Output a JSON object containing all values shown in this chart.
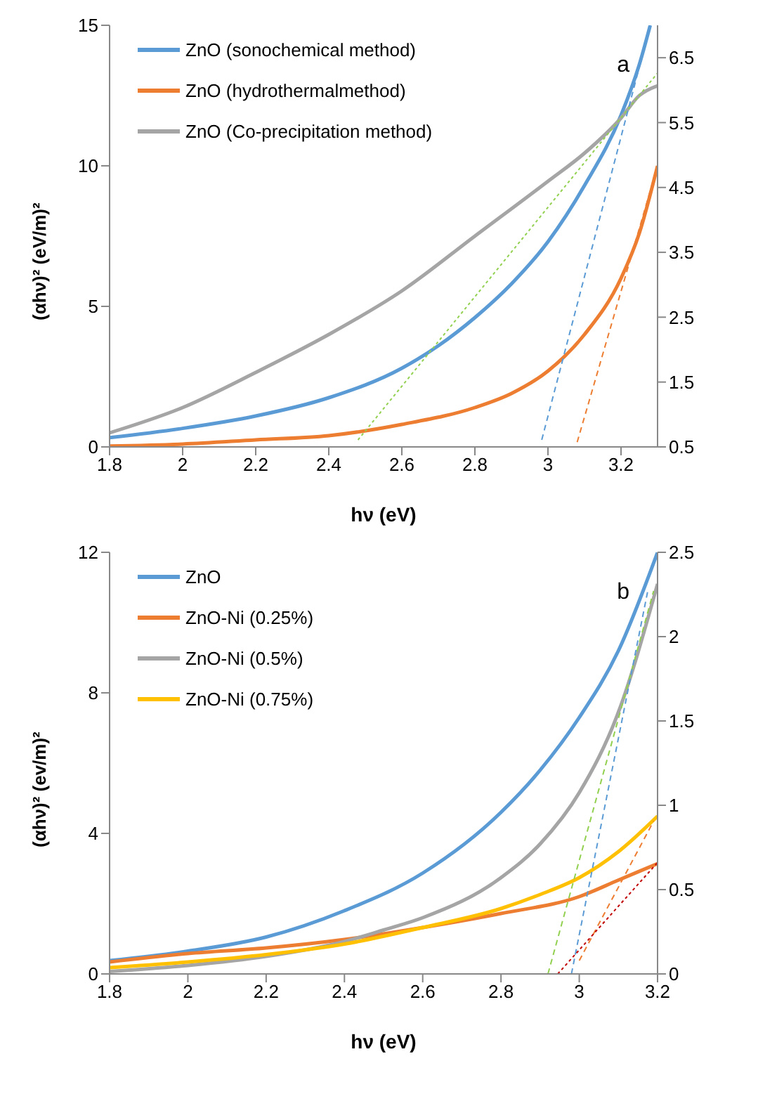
{
  "chart_data": [
    {
      "type": "line",
      "xlabel": "hν (eV)",
      "ylabel": "(αhν)² (eV/m)²",
      "annotations": [
        "a"
      ],
      "xlim": [
        1.8,
        3.3
      ],
      "xticks": [
        1.8,
        2,
        2.2,
        2.4,
        2.6,
        2.8,
        3,
        3.2
      ],
      "ylim": [
        0,
        15
      ],
      "yticks": [
        0,
        5,
        10,
        15
      ],
      "y2lim": [
        0.5,
        7.0
      ],
      "y2ticks": [
        0.5,
        1.5,
        2.5,
        3.5,
        4.5,
        5.5,
        6.5
      ],
      "legend": "top left",
      "marker": "none",
      "line_style": "solid",
      "x": [
        1.8,
        2.0,
        2.2,
        2.4,
        2.6,
        2.8,
        2.9,
        3.0,
        3.1,
        3.2,
        3.25,
        3.3
      ],
      "series": [
        {
          "name": "ZnO (sonochemical method)",
          "color": "#5b9bd5",
          "x": [
            1.8,
            2.0,
            2.2,
            2.4,
            2.6,
            2.7,
            2.8,
            2.9,
            3.0,
            3.1,
            3.2,
            3.25,
            3.28
          ],
          "values": [
            0.33,
            0.66,
            1.1,
            1.75,
            2.8,
            3.6,
            4.6,
            5.8,
            7.3,
            9.3,
            11.8,
            13.6,
            15
          ]
        },
        {
          "name": "ZnO (hydrothermalmethod)",
          "color": "#ed7d31",
          "values": [
            0.03,
            0.1,
            0.25,
            0.4,
            0.8,
            1.4,
            1.9,
            2.7,
            4.0,
            6.0,
            7.6,
            10.0
          ]
        },
        {
          "name": "ZnO (Co-precipitation method)",
          "color": "#a5a5a5",
          "x": [
            1.8,
            2.0,
            2.2,
            2.4,
            2.6,
            2.8,
            3.0,
            3.1,
            3.2,
            3.25,
            3.3
          ],
          "values": [
            0.5,
            1.4,
            2.65,
            4.0,
            5.55,
            7.5,
            9.45,
            10.45,
            11.7,
            12.5,
            12.85
          ]
        },
        {
          "type": "line",
          "color": "#5b9bd5",
          "line_style": "dashed",
          "x": [
            2.983,
            3.28
          ],
          "values": [
            0.25,
            15
          ]
        },
        {
          "type": "line",
          "color": "#ed7d31",
          "line_style": "dashed",
          "x": [
            3.08,
            3.3
          ],
          "values": [
            0.17,
            10
          ]
        },
        {
          "type": "line",
          "color": "#92d050",
          "line_style": "dotted",
          "x": [
            2.48,
            3.3
          ],
          "values": [
            0.25,
            13.3
          ]
        }
      ]
    },
    {
      "type": "line",
      "xlabel": "hν (eV)",
      "ylabel": "(αhν)² (ev/m)²",
      "annotations": [
        "b"
      ],
      "xlim": [
        1.8,
        3.2
      ],
      "xticks": [
        1.8,
        2,
        2.2,
        2.4,
        2.6,
        2.8,
        3,
        3.2
      ],
      "ylim": [
        0,
        12
      ],
      "yticks": [
        0,
        4,
        8,
        12
      ],
      "y2lim": [
        0,
        2.5
      ],
      "y2ticks": [
        0,
        0.5,
        1,
        1.5,
        2,
        2.5
      ],
      "legend": "top left",
      "marker": "none",
      "line_style": "solid",
      "x": [
        1.8,
        2.0,
        2.2,
        2.4,
        2.6,
        2.8,
        2.9,
        3.0,
        3.1,
        3.2
      ],
      "series": [
        {
          "name": "ZnO",
          "color": "#5b9bd5",
          "values": [
            0.38,
            0.65,
            1.05,
            1.8,
            2.87,
            4.6,
            5.8,
            7.3,
            9.2,
            12.0
          ]
        },
        {
          "name": "ZnO-Ni (0.25%)",
          "color": "#ed7d31",
          "x": [
            1.8,
            2.0,
            2.2,
            2.4,
            2.6,
            2.8,
            3.0,
            3.1,
            3.2
          ],
          "values": [
            0.34,
            0.58,
            0.74,
            0.98,
            1.32,
            1.72,
            2.2,
            2.67,
            3.14
          ]
        },
        {
          "name": "ZnO-Ni (0.5%)",
          "color": "#a5a5a5",
          "x": [
            1.8,
            2.0,
            2.2,
            2.4,
            2.5,
            2.6,
            2.8,
            2.9,
            3.0,
            3.1,
            3.2
          ],
          "values": [
            0.07,
            0.24,
            0.5,
            0.92,
            1.25,
            1.6,
            2.74,
            3.7,
            5.16,
            7.45,
            11.1
          ]
        },
        {
          "name": "ZnO-Ni (0.75%)",
          "color": "#ffc000",
          "values": [
            0.18,
            0.34,
            0.55,
            0.85,
            1.32,
            1.86,
            2.26,
            2.74,
            3.48,
            4.49
          ]
        },
        {
          "type": "line",
          "color": "#92d050",
          "line_style": "dashed",
          "x": [
            2.92,
            3.19
          ],
          "values": [
            0,
            10.9
          ]
        },
        {
          "type": "line",
          "color": "#5b9bd5",
          "line_style": "dashed",
          "x": [
            2.98,
            3.175
          ],
          "values": [
            0,
            10.9
          ]
        },
        {
          "type": "line",
          "color": "#ed7d31",
          "line_style": "dashed",
          "x": [
            3.0,
            3.19
          ],
          "values": [
            0.38,
            4.35
          ]
        },
        {
          "type": "line",
          "color": "#c00000",
          "line_style": "dotted",
          "x": [
            2.945,
            3.2
          ],
          "values": [
            0,
            3.17
          ]
        }
      ]
    }
  ]
}
